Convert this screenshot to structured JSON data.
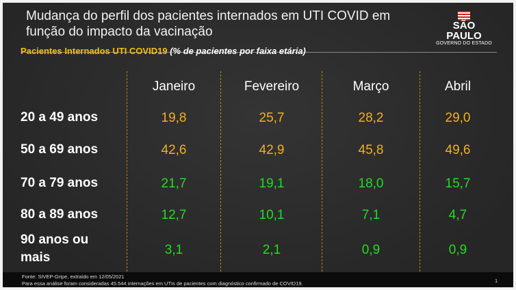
{
  "title": "Mudança do perfil dos pacientes internados em UTI COVID em função do impacto da vacinação",
  "logo": {
    "line1": "SÃO PAULO",
    "line2": "GOVERNO DO ESTADO"
  },
  "subtitle": {
    "main": "Pacientes Internados UTI COVID19",
    "note": "(% de pacientes por faixa etária)"
  },
  "colors": {
    "background": "#2c2c2c",
    "accent": "#f5c000",
    "value_high": "#f0b020",
    "value_low": "#22dd22"
  },
  "chart_data": {
    "type": "table",
    "columns": [
      "Janeiro",
      "Fevereiro",
      "Março",
      "Abril"
    ],
    "rows": [
      {
        "label": "20 a 49 anos",
        "values": [
          "19,8",
          "25,7",
          "28,2",
          "29,0"
        ],
        "color": "orange"
      },
      {
        "label": "50 a 69 anos",
        "values": [
          "42,6",
          "42,9",
          "45,8",
          "49,6"
        ],
        "color": "orange"
      },
      {
        "label": "70 a 79 anos",
        "values": [
          "21,7",
          "19,1",
          "18,0",
          "15,7"
        ],
        "color": "green"
      },
      {
        "label": "80 a 89 anos",
        "values": [
          "12,7",
          "10,1",
          "7,1",
          "4,7"
        ],
        "color": "green"
      },
      {
        "label": "90 anos ou mais",
        "values": [
          "3,1",
          "2,1",
          "0,9",
          "0,9"
        ],
        "color": "green"
      }
    ]
  },
  "footer": {
    "source": "Fonte: SIVEP-Gripe, extraído em 12/05/2021",
    "note": "Para essa análise foram consideradas 45.544 internações em UTIs de pacientes com diagnóstico confirmado de COVID19.",
    "page": "1"
  }
}
